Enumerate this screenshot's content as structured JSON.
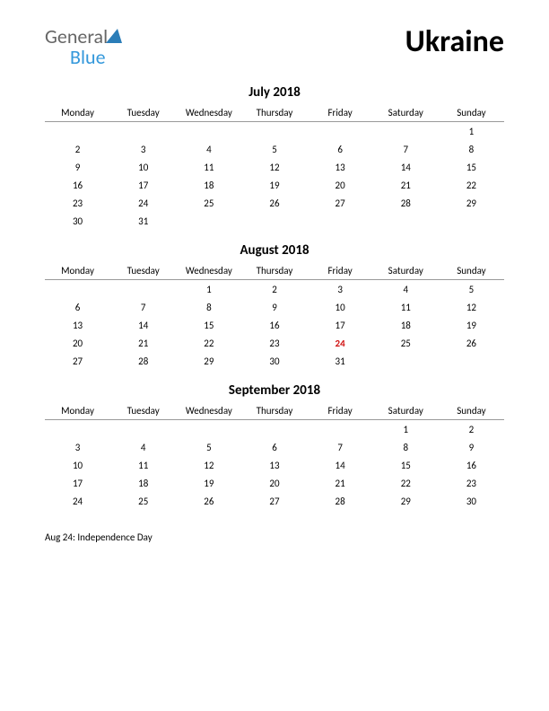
{
  "logo": {
    "text_general": "General",
    "text_blue": "Blue",
    "icon_color": "#2b7db8"
  },
  "title": "Ukraine",
  "columns": [
    "Monday",
    "Tuesday",
    "Wednesday",
    "Thursday",
    "Friday",
    "Saturday",
    "Sunday"
  ],
  "months": [
    {
      "title": "July 2018",
      "weeks": [
        [
          "",
          "",
          "",
          "",
          "",
          "",
          "1"
        ],
        [
          "2",
          "3",
          "4",
          "5",
          "6",
          "7",
          "8"
        ],
        [
          "9",
          "10",
          "11",
          "12",
          "13",
          "14",
          "15"
        ],
        [
          "16",
          "17",
          "18",
          "19",
          "20",
          "21",
          "22"
        ],
        [
          "23",
          "24",
          "25",
          "26",
          "27",
          "28",
          "29"
        ],
        [
          "30",
          "31",
          "",
          "",
          "",
          "",
          ""
        ]
      ],
      "holidays": []
    },
    {
      "title": "August 2018",
      "weeks": [
        [
          "",
          "",
          "1",
          "2",
          "3",
          "4",
          "5"
        ],
        [
          "6",
          "7",
          "8",
          "9",
          "10",
          "11",
          "12"
        ],
        [
          "13",
          "14",
          "15",
          "16",
          "17",
          "18",
          "19"
        ],
        [
          "20",
          "21",
          "22",
          "23",
          "24",
          "25",
          "26"
        ],
        [
          "27",
          "28",
          "29",
          "30",
          "31",
          "",
          ""
        ]
      ],
      "holidays": [
        {
          "row": 3,
          "col": 4
        }
      ]
    },
    {
      "title": "September 2018",
      "weeks": [
        [
          "",
          "",
          "",
          "",
          "",
          "1",
          "2"
        ],
        [
          "3",
          "4",
          "5",
          "6",
          "7",
          "8",
          "9"
        ],
        [
          "10",
          "11",
          "12",
          "13",
          "14",
          "15",
          "16"
        ],
        [
          "17",
          "18",
          "19",
          "20",
          "21",
          "22",
          "23"
        ],
        [
          "24",
          "25",
          "26",
          "27",
          "28",
          "29",
          "30"
        ]
      ],
      "holidays": []
    }
  ],
  "holiday_list": [
    "Aug 24: Independence Day"
  ],
  "style": {
    "text_color": "#000000",
    "holiday_color": "#d01010",
    "border_color": "#999999",
    "background": "#ffffff",
    "header_font_size": 11,
    "cell_font_size": 11,
    "month_title_size": 15,
    "title_size": 34
  }
}
